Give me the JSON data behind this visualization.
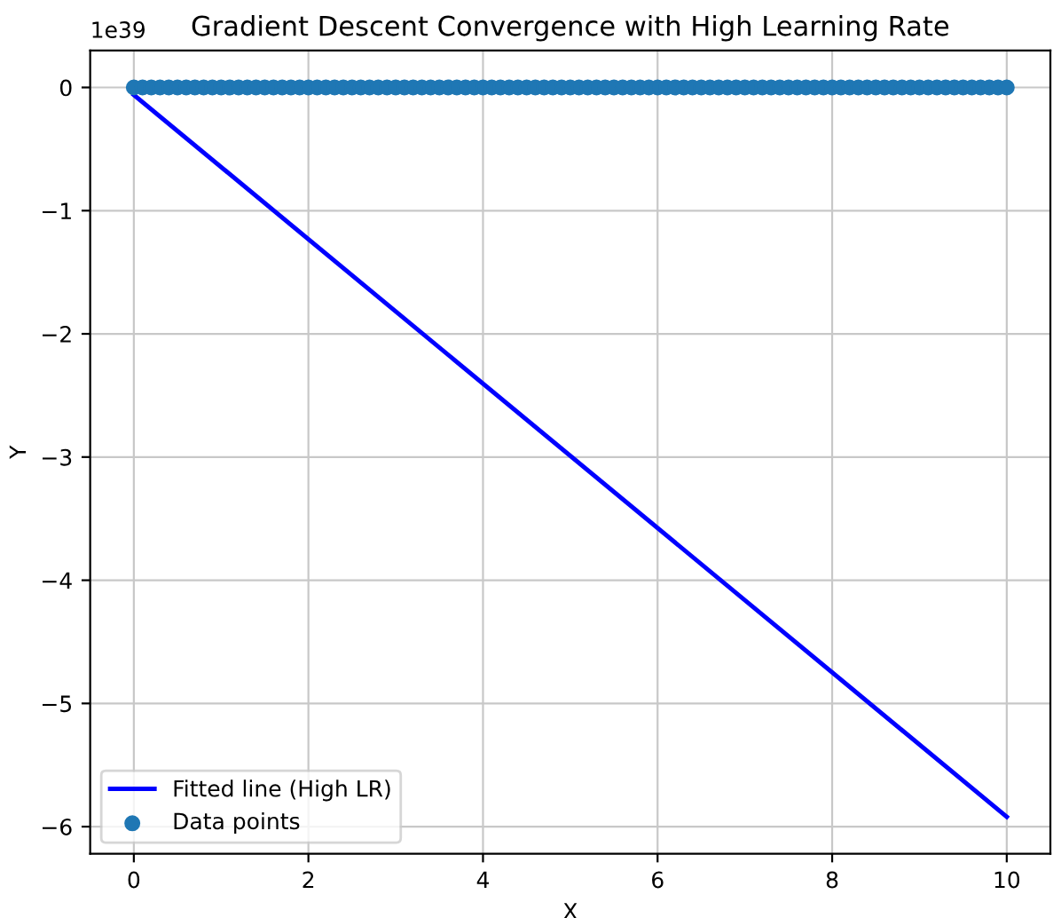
{
  "chart_data": {
    "type": "line",
    "title": "Gradient Descent Convergence with High Learning Rate",
    "xlabel": "X",
    "ylabel": "Y",
    "annotations": [
      "1e39"
    ],
    "series": [
      {
        "name": "Fitted line (High LR)",
        "color": "#0000ff",
        "x": [
          0,
          10
        ],
        "values": [
          -0.06,
          -5.92
        ]
      },
      {
        "name": "Data points",
        "type": "scatter",
        "marker": "circle",
        "color": "#1f77b4",
        "x": [
          0,
          0.1,
          0.2,
          0.3,
          0.4,
          0.5,
          0.6,
          0.7,
          0.8,
          0.9,
          1,
          1.1,
          1.2,
          1.3,
          1.4,
          1.5,
          1.6,
          1.7,
          1.8,
          1.9,
          2,
          2.1,
          2.2,
          2.3,
          2.4,
          2.5,
          2.6,
          2.7,
          2.8,
          2.9,
          3,
          3.1,
          3.2,
          3.3,
          3.4,
          3.5,
          3.6,
          3.7,
          3.8,
          3.9,
          4,
          4.1,
          4.2,
          4.3,
          4.4,
          4.5,
          4.6,
          4.7,
          4.8,
          4.9,
          5,
          5.1,
          5.2,
          5.3,
          5.4,
          5.5,
          5.6,
          5.7,
          5.8,
          5.9,
          6,
          6.1,
          6.2,
          6.3,
          6.4,
          6.5,
          6.6,
          6.7,
          6.8,
          6.9,
          7,
          7.1,
          7.2,
          7.3,
          7.4,
          7.5,
          7.6,
          7.7,
          7.8,
          7.9,
          8,
          8.1,
          8.2,
          8.3,
          8.4,
          8.5,
          8.6,
          8.7,
          8.8,
          8.9,
          9,
          9.1,
          9.2,
          9.3,
          9.4,
          9.5,
          9.6,
          9.7,
          9.8,
          9.9,
          10
        ],
        "values": [
          0,
          0,
          0,
          0,
          0,
          0,
          0,
          0,
          0,
          0,
          0,
          0,
          0,
          0,
          0,
          0,
          0,
          0,
          0,
          0,
          0,
          0,
          0,
          0,
          0,
          0,
          0,
          0,
          0,
          0,
          0,
          0,
          0,
          0,
          0,
          0,
          0,
          0,
          0,
          0,
          0,
          0,
          0,
          0,
          0,
          0,
          0,
          0,
          0,
          0,
          0,
          0,
          0,
          0,
          0,
          0,
          0,
          0,
          0,
          0,
          0,
          0,
          0,
          0,
          0,
          0,
          0,
          0,
          0,
          0,
          0,
          0,
          0,
          0,
          0,
          0,
          0,
          0,
          0,
          0,
          0,
          0,
          0,
          0,
          0,
          0,
          0,
          0,
          0,
          0,
          0,
          0,
          0,
          0,
          0,
          0,
          0,
          0,
          0,
          0,
          0
        ]
      }
    ],
    "xlim": [
      -0.5,
      10.5
    ],
    "xticks": [
      0,
      2,
      4,
      6,
      8,
      10
    ],
    "ylim": [
      -6.22,
      0.3
    ],
    "yticks": [
      {
        "value": 0,
        "label": "0"
      },
      {
        "value": -1,
        "label": "−1"
      },
      {
        "value": -2,
        "label": "−2"
      },
      {
        "value": -3,
        "label": "−3"
      },
      {
        "value": -4,
        "label": "−4"
      },
      {
        "value": -5,
        "label": "−5"
      },
      {
        "value": -6,
        "label": "−6"
      }
    ],
    "grid": true,
    "legend": "bottom left"
  }
}
